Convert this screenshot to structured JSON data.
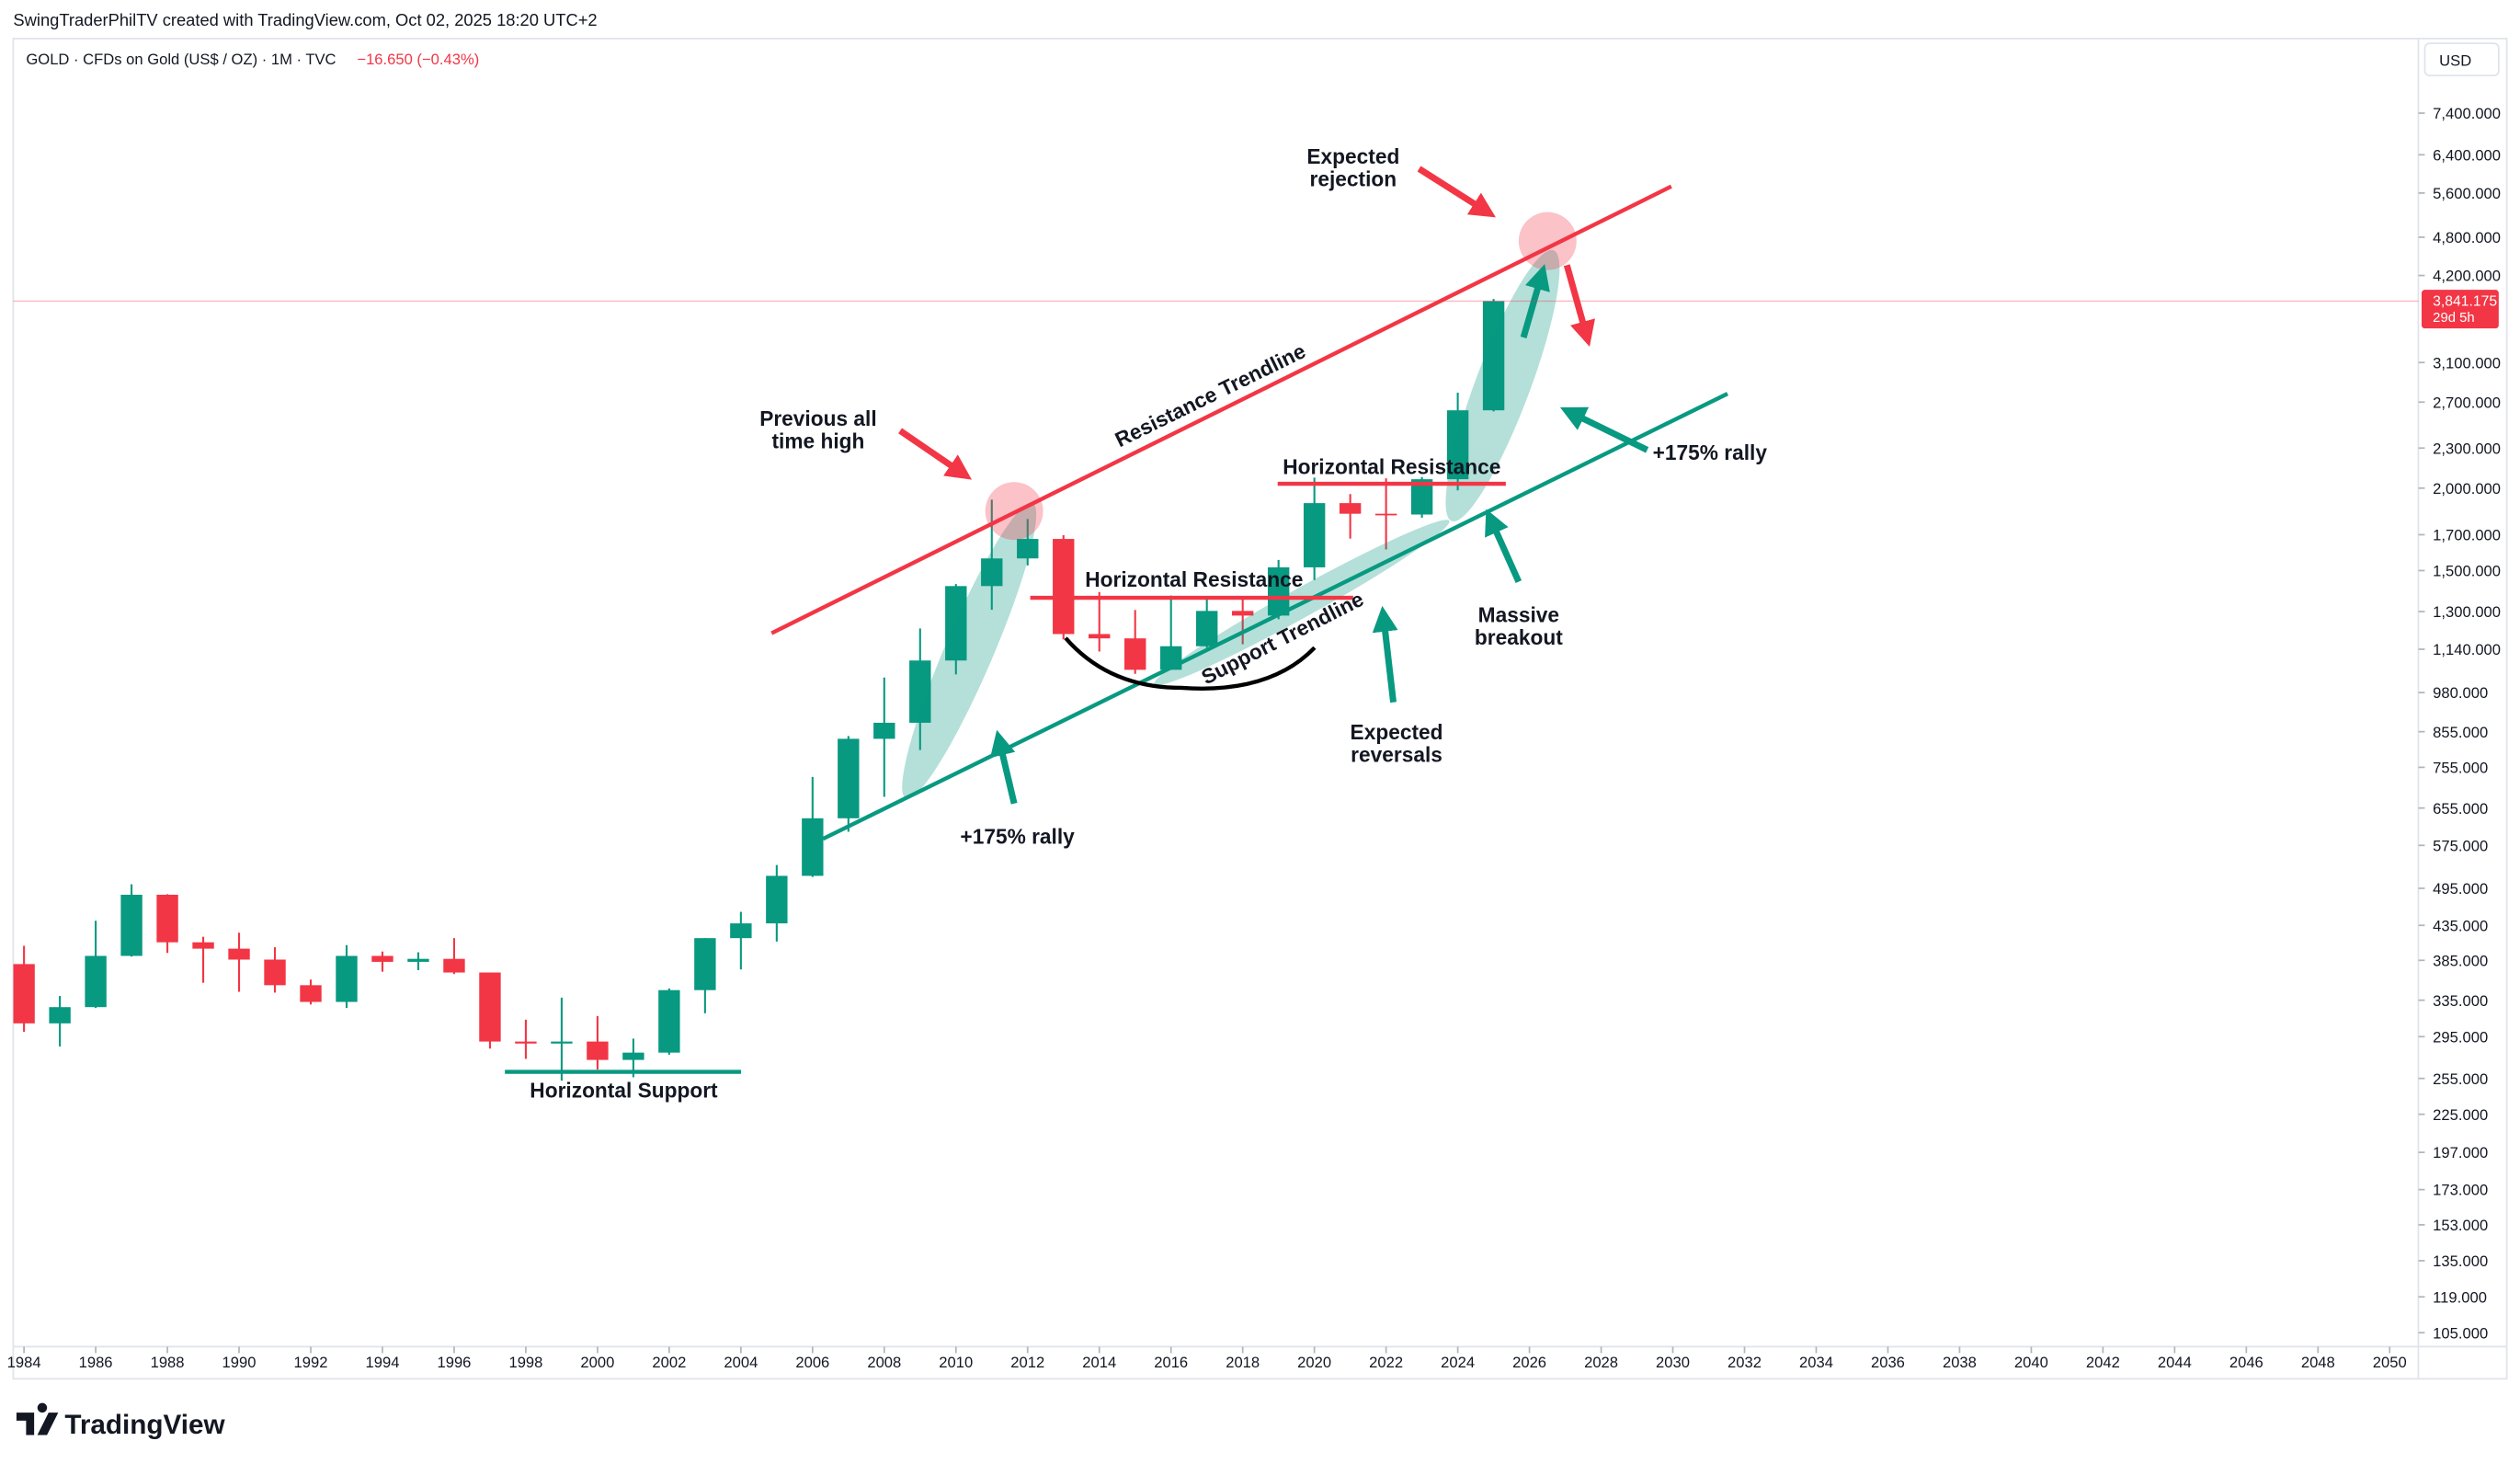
{
  "header": "SwingTraderPhilTV created with TradingView.com, Oct 02, 2025 18:20 UTC+2",
  "logo": "TradingView",
  "chart_data": {
    "type": "candlestick",
    "symbol": "GOLD · CFDs on Gold (US$ / OZ) · 1M · TVC",
    "change": "−16.650 (−0.43%)",
    "currency": "USD",
    "log_scale": true,
    "grid": false,
    "up_color": "#089981",
    "down_color": "#f23645",
    "x": [
      1984,
      1985,
      1986,
      1987,
      1988,
      1989,
      1990,
      1991,
      1992,
      1993,
      1994,
      1995,
      1996,
      1997,
      1998,
      1999,
      2000,
      2001,
      2002,
      2003,
      2004,
      2005,
      2006,
      2007,
      2008,
      2009,
      2010,
      2011,
      2012,
      2013,
      2014,
      2015,
      2016,
      2017,
      2018,
      2019,
      2020,
      2021,
      2022,
      2023,
      2024,
      2025
    ],
    "open": [
      380,
      309,
      327,
      391,
      484,
      410,
      401,
      386,
      353,
      333,
      391,
      383,
      387,
      369,
      290,
      288,
      290,
      272,
      279,
      347,
      416,
      438,
      517,
      632,
      834,
      882,
      1096,
      1421,
      1565,
      1675,
      1202,
      1184,
      1061,
      1152,
      1303,
      1282,
      1517,
      1898,
      1829,
      1824,
      2063,
      2624
    ],
    "high": [
      405,
      340,
      442,
      502,
      485,
      418,
      424,
      403,
      360,
      406,
      397,
      396,
      416,
      369,
      313,
      338,
      317,
      293,
      349,
      416,
      456,
      537,
      730,
      842,
      1033,
      1226,
      1431,
      1921,
      1796,
      1697,
      1392,
      1307,
      1375,
      1358,
      1366,
      1557,
      2075,
      1959,
      2070,
      2079,
      2790,
      3870
    ],
    "low": [
      300,
      285,
      326,
      390,
      395,
      356,
      345,
      344,
      330,
      326,
      370,
      372,
      367,
      283,
      273,
      253,
      263,
      256,
      277,
      320,
      373,
      411,
      515,
      603,
      681,
      802,
      1044,
      1308,
      1527,
      1180,
      1131,
      1046,
      1061,
      1146,
      1160,
      1266,
      1451,
      1677,
      1615,
      1804,
      1984,
      2614
    ],
    "close": [
      309,
      327,
      391,
      484,
      410,
      401,
      386,
      353,
      333,
      391,
      383,
      387,
      369,
      290,
      288,
      290,
      272,
      279,
      347,
      416,
      438,
      517,
      632,
      834,
      882,
      1096,
      1421,
      1565,
      1675,
      1202,
      1184,
      1061,
      1152,
      1303,
      1282,
      1517,
      1898,
      1829,
      1824,
      2063,
      2624,
      3841
    ],
    "xlim": [
      1983.7,
      2050.8
    ],
    "xticks": [
      1984,
      1986,
      1988,
      1990,
      1992,
      1994,
      1996,
      1998,
      2000,
      2002,
      2004,
      2006,
      2008,
      2010,
      2012,
      2014,
      2016,
      2018,
      2020,
      2022,
      2024,
      2026,
      2028,
      2030,
      2032,
      2034,
      2036,
      2038,
      2040,
      2042,
      2044,
      2046,
      2048,
      2050
    ],
    "ylim": [
      100,
      9600
    ],
    "yticks": [
      {
        "value": 105,
        "label": "105.000"
      },
      {
        "value": 119,
        "label": "119.000"
      },
      {
        "value": 135,
        "label": "135.000"
      },
      {
        "value": 153,
        "label": "153.000"
      },
      {
        "value": 173,
        "label": "173.000"
      },
      {
        "value": 197,
        "label": "197.000"
      },
      {
        "value": 225,
        "label": "225.000"
      },
      {
        "value": 255,
        "label": "255.000"
      },
      {
        "value": 295,
        "label": "295.000"
      },
      {
        "value": 335,
        "label": "335.000"
      },
      {
        "value": 385,
        "label": "385.000"
      },
      {
        "value": 435,
        "label": "435.000"
      },
      {
        "value": 495,
        "label": "495.000"
      },
      {
        "value": 575,
        "label": "575.000"
      },
      {
        "value": 655,
        "label": "655.000"
      },
      {
        "value": 755,
        "label": "755.000"
      },
      {
        "value": 855,
        "label": "855.000"
      },
      {
        "value": 980,
        "label": "980.000"
      },
      {
        "value": 1140,
        "label": "1,140.000"
      },
      {
        "value": 1300,
        "label": "1,300.000"
      },
      {
        "value": 1500,
        "label": "1,500.000"
      },
      {
        "value": 1700,
        "label": "1,700.000"
      },
      {
        "value": 2000,
        "label": "2,000.000"
      },
      {
        "value": 2300,
        "label": "2,300.000"
      },
      {
        "value": 2700,
        "label": "2,700.000"
      },
      {
        "value": 3100,
        "label": "3,100.000"
      },
      {
        "value": 4200,
        "label": "4,200.000"
      },
      {
        "value": 4800,
        "label": "4,800.000"
      },
      {
        "value": 5600,
        "label": "5,600.000"
      },
      {
        "value": 6400,
        "label": "6,400.000"
      },
      {
        "value": 7400,
        "label": "7,400.000"
      }
    ],
    "last_price": {
      "value": 3841.175,
      "label": "3,841.175"
    },
    "countdown": "29d 5h",
    "annotations": [
      [
        "Expected",
        "rejection"
      ],
      [
        "Previous all",
        "time high"
      ],
      [
        "Resistance Trendline"
      ],
      [
        "Horizontal Resistance"
      ],
      [
        "Horizontal Resistance"
      ],
      [
        "Support Trendline"
      ],
      [
        "+175% rally"
      ],
      [
        "+175% rally"
      ],
      [
        "Expected",
        "reversals"
      ],
      [
        "Massive",
        "breakout"
      ],
      [
        "Horizontal Support"
      ]
    ]
  }
}
